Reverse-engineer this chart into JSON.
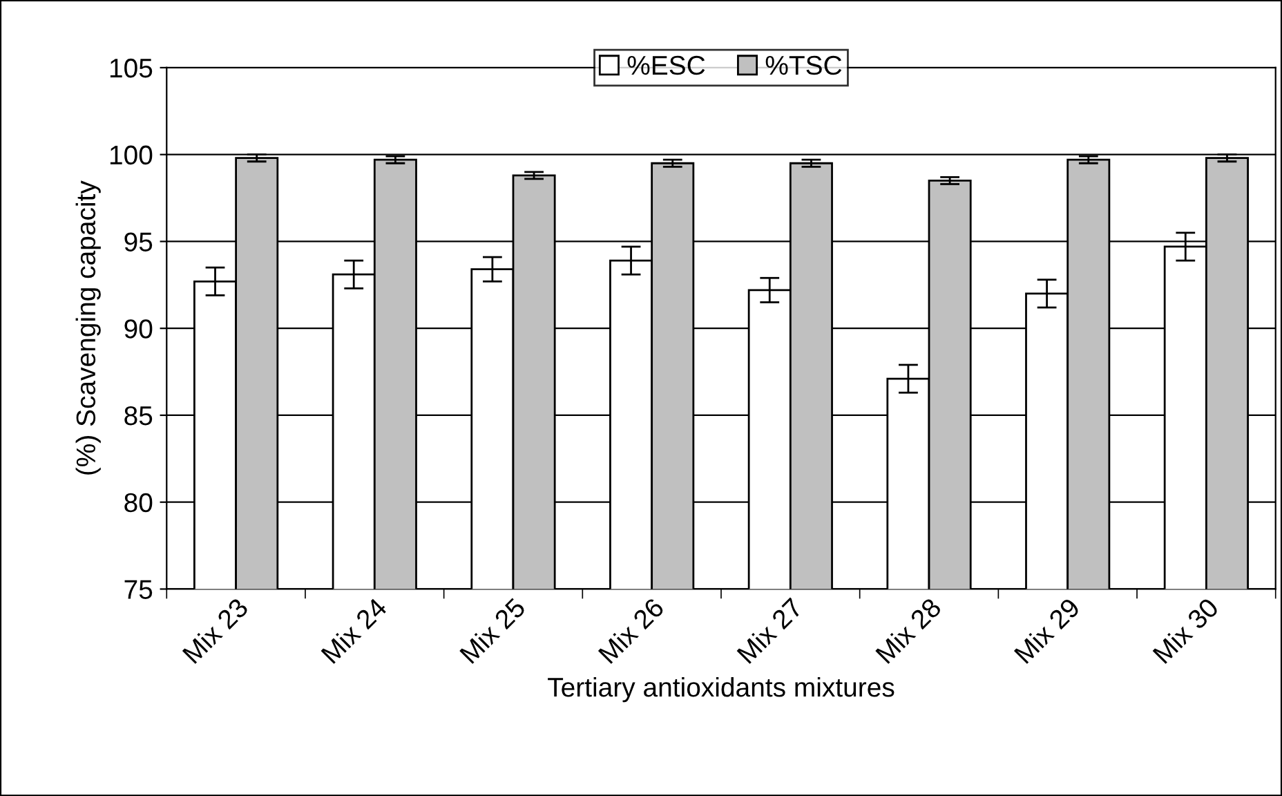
{
  "chart_data": {
    "type": "bar",
    "xlabel": "Tertiary antioxidants mixtures",
    "ylabel": "(%) Scavenging capacity",
    "categories": [
      "Mix 23",
      "Mix 24",
      "Mix 25",
      "Mix 26",
      "Mix 27",
      "Mix 28",
      "Mix 29",
      "Mix 30"
    ],
    "series": [
      {
        "name": "%ESC",
        "color": "#ffffff",
        "values": [
          92.7,
          93.1,
          93.4,
          93.9,
          92.2,
          87.1,
          92.0,
          94.7
        ],
        "errors": [
          0.8,
          0.8,
          0.7,
          0.8,
          0.7,
          0.8,
          0.8,
          0.8
        ]
      },
      {
        "name": "%TSC",
        "color": "#c0c0c0",
        "values": [
          99.8,
          99.7,
          98.8,
          99.5,
          99.5,
          98.5,
          99.7,
          99.8
        ],
        "errors": [
          0.2,
          0.2,
          0.2,
          0.2,
          0.2,
          0.2,
          0.2,
          0.2
        ]
      }
    ],
    "ylim": [
      75,
      105
    ],
    "yticks": [
      75,
      80,
      85,
      90,
      95,
      100,
      105
    ],
    "grid": "y",
    "legend": "top"
  }
}
